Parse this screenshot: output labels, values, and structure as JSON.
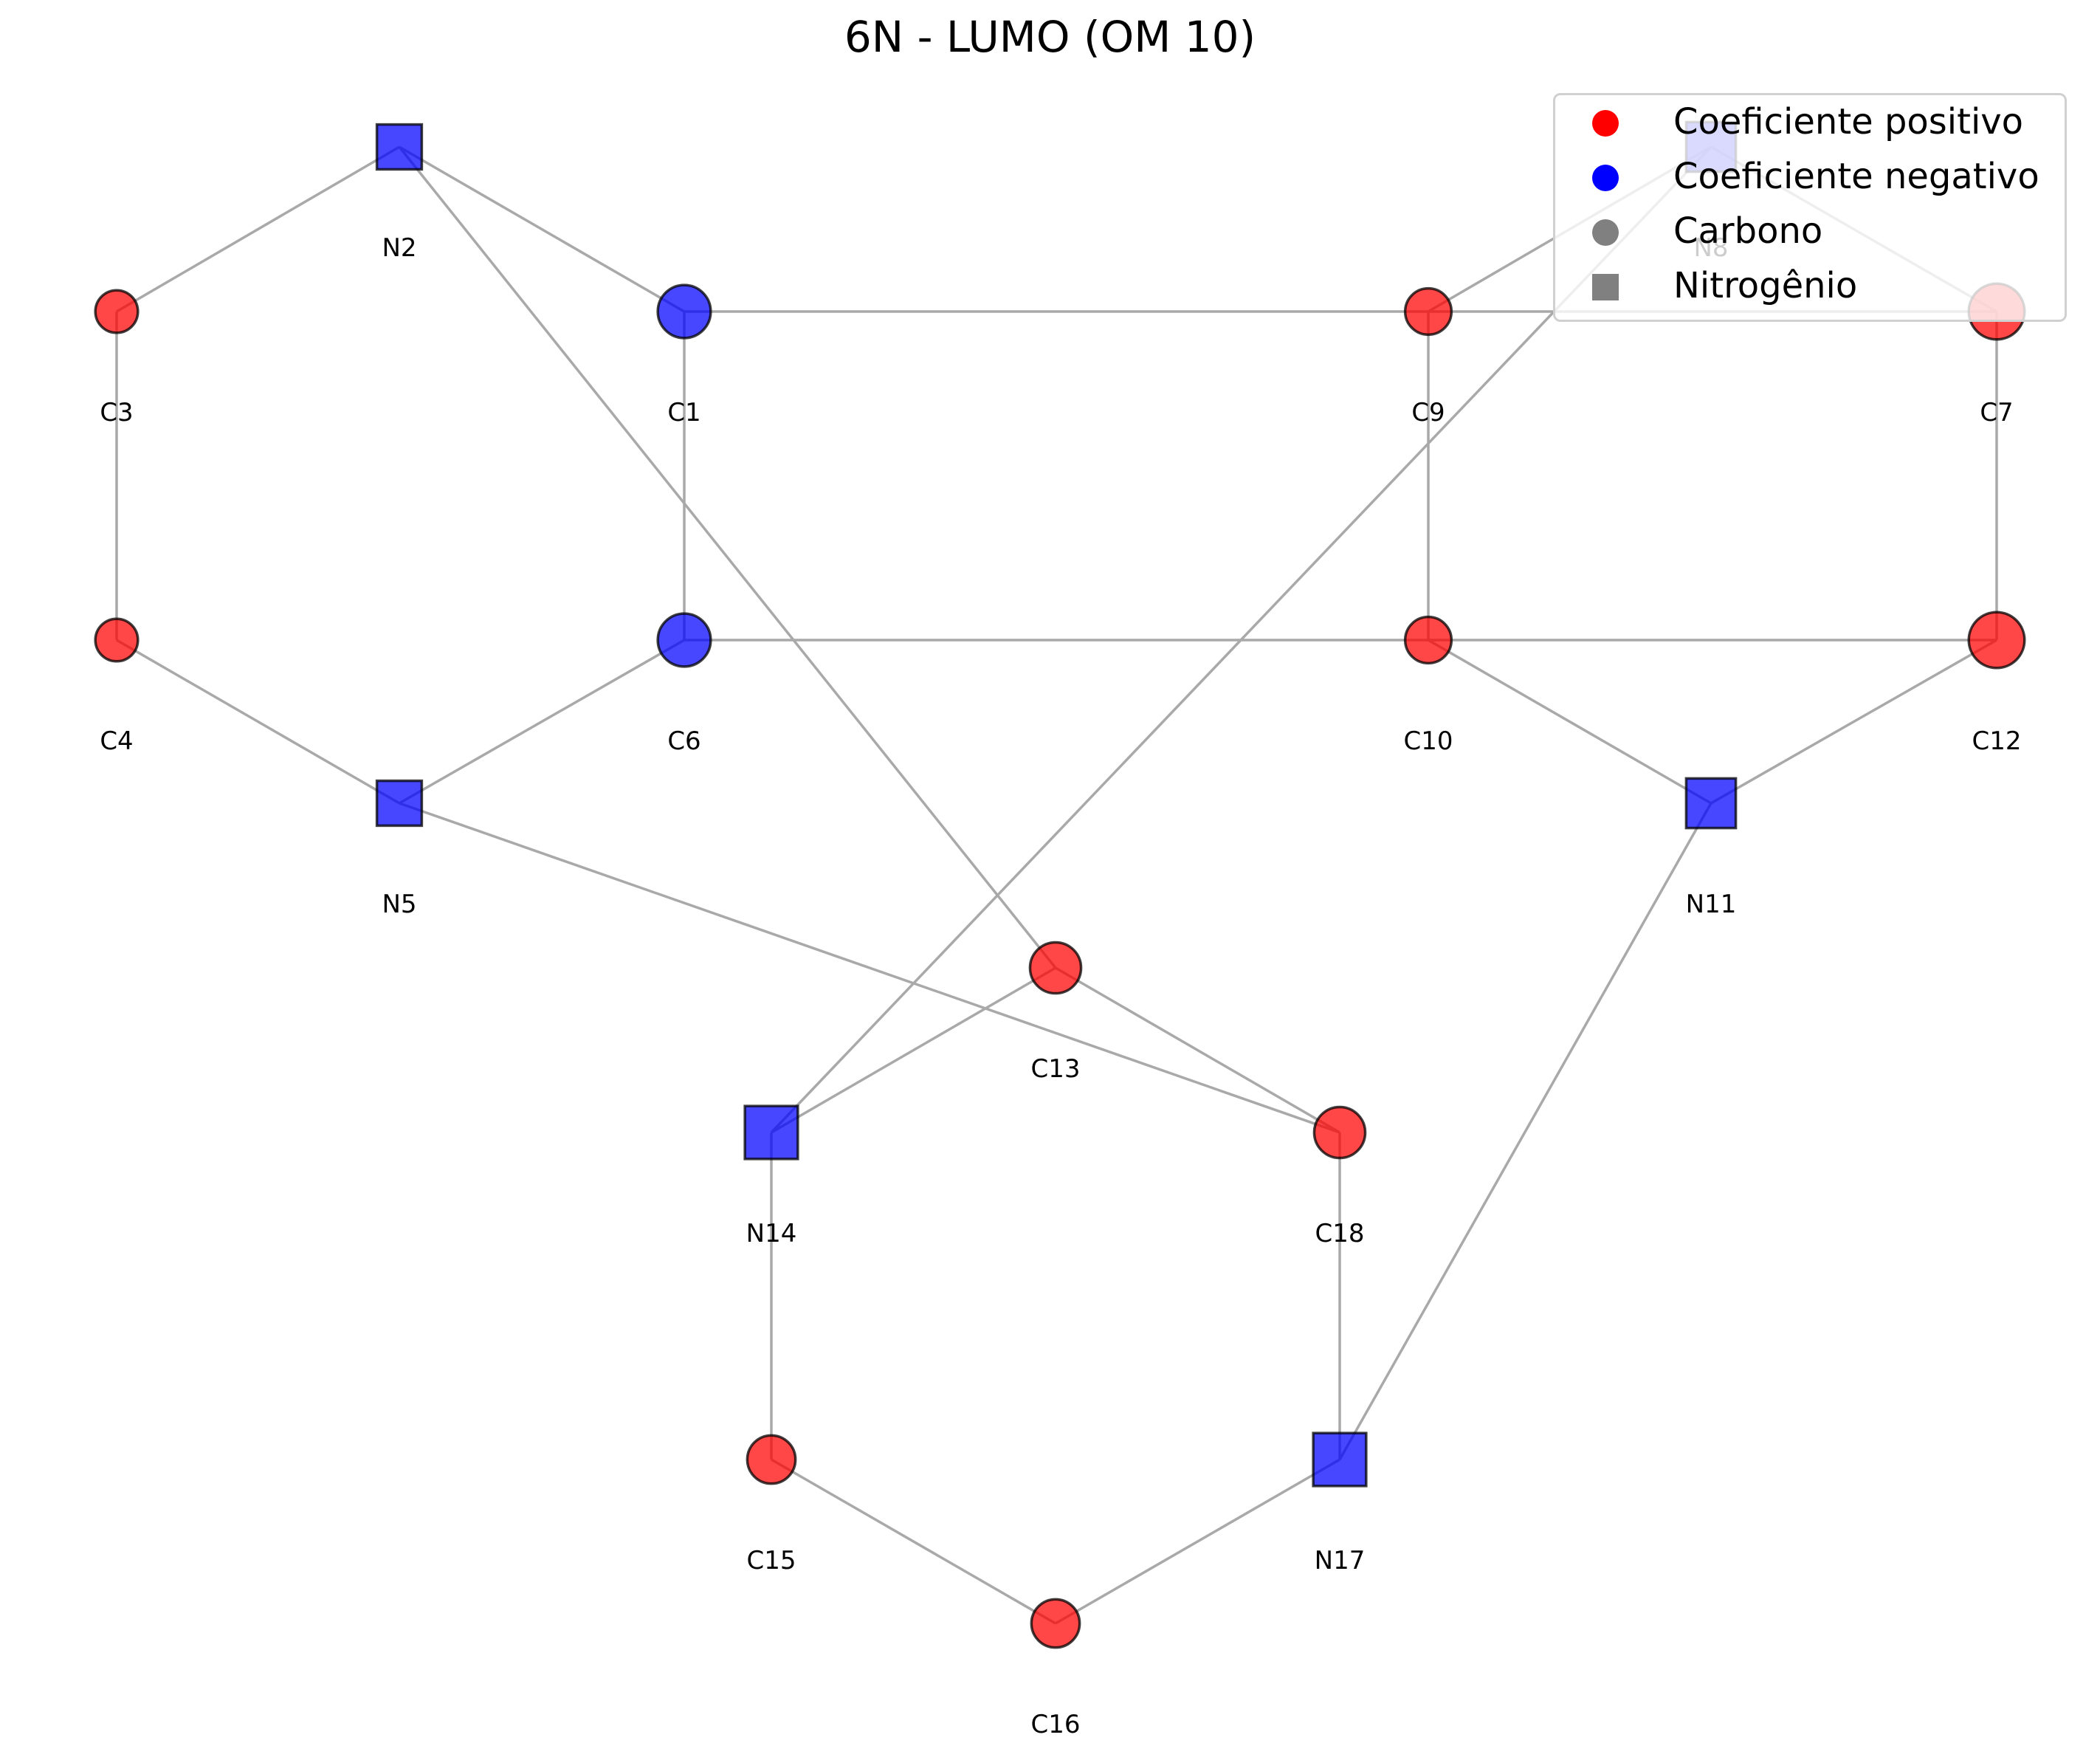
{
  "title": "6N - LUMO (OM 10)",
  "colors": {
    "positive": "#ff0000",
    "negative": "#0000ff",
    "neutral": "#808080",
    "edge": "#a9a9a9"
  },
  "legend": [
    {
      "label": "Coeficiente positivo",
      "marker": "circle",
      "color": "#ff0000"
    },
    {
      "label": "Coeficiente negativo",
      "marker": "circle",
      "color": "#0000ff"
    },
    {
      "label": "Carbono",
      "marker": "circle",
      "color": "#808080"
    },
    {
      "label": "Nitrogênio",
      "marker": "square",
      "color": "#808080"
    }
  ],
  "atoms": [
    {
      "id": "C1",
      "element": "C",
      "sign": "negative",
      "magnitude": 0.62
    },
    {
      "id": "N2",
      "element": "N",
      "sign": "negative",
      "magnitude": 0.45
    },
    {
      "id": "C3",
      "element": "C",
      "sign": "positive",
      "magnitude": 0.4
    },
    {
      "id": "C4",
      "element": "C",
      "sign": "positive",
      "magnitude": 0.4
    },
    {
      "id": "N5",
      "element": "N",
      "sign": "negative",
      "magnitude": 0.45
    },
    {
      "id": "C6",
      "element": "C",
      "sign": "negative",
      "magnitude": 0.62
    },
    {
      "id": "C7",
      "element": "C",
      "sign": "positive",
      "magnitude": 0.68
    },
    {
      "id": "N8",
      "element": "N",
      "sign": "negative",
      "magnitude": 0.55
    },
    {
      "id": "C9",
      "element": "C",
      "sign": "positive",
      "magnitude": 0.48
    },
    {
      "id": "C10",
      "element": "C",
      "sign": "positive",
      "magnitude": 0.48
    },
    {
      "id": "N11",
      "element": "N",
      "sign": "negative",
      "magnitude": 0.55
    },
    {
      "id": "C12",
      "element": "C",
      "sign": "positive",
      "magnitude": 0.68
    },
    {
      "id": "C13",
      "element": "C",
      "sign": "positive",
      "magnitude": 0.58
    },
    {
      "id": "N14",
      "element": "N",
      "sign": "negative",
      "magnitude": 0.62
    },
    {
      "id": "C15",
      "element": "C",
      "sign": "positive",
      "magnitude": 0.52
    },
    {
      "id": "C16",
      "element": "C",
      "sign": "positive",
      "magnitude": 0.52
    },
    {
      "id": "N17",
      "element": "N",
      "sign": "negative",
      "magnitude": 0.62
    },
    {
      "id": "C18",
      "element": "C",
      "sign": "positive",
      "magnitude": 0.58
    }
  ],
  "bonds": [
    [
      "C1",
      "N2"
    ],
    [
      "N2",
      "C3"
    ],
    [
      "C3",
      "C4"
    ],
    [
      "C4",
      "N5"
    ],
    [
      "N5",
      "C6"
    ],
    [
      "C6",
      "C1"
    ],
    [
      "C1",
      "C9"
    ],
    [
      "C6",
      "C10"
    ],
    [
      "C9",
      "N8"
    ],
    [
      "N8",
      "C7"
    ],
    [
      "C7",
      "C12"
    ],
    [
      "C12",
      "N11"
    ],
    [
      "N11",
      "C10"
    ],
    [
      "C10",
      "C9"
    ],
    [
      "C9",
      "C7"
    ],
    [
      "C10",
      "C12"
    ],
    [
      "N2",
      "C13"
    ],
    [
      "C13",
      "N14"
    ],
    [
      "N14",
      "C15"
    ],
    [
      "C15",
      "C16"
    ],
    [
      "C16",
      "N17"
    ],
    [
      "N17",
      "C18"
    ],
    [
      "C18",
      "C13"
    ],
    [
      "N5",
      "C18"
    ],
    [
      "N8",
      "N14"
    ],
    [
      "N11",
      "N17"
    ]
  ]
}
